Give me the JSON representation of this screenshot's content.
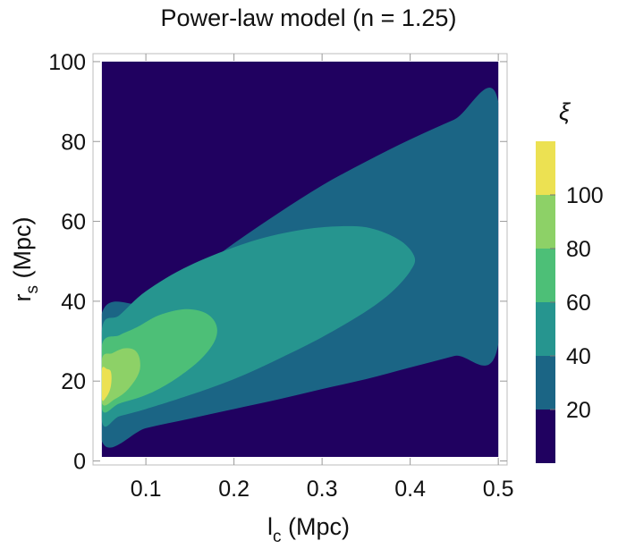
{
  "chart_data": {
    "type": "contour",
    "title": "Power-law model (n = 1.25)",
    "xlabel": {
      "main": "l",
      "sub": "c",
      "unit": " (Mpc)"
    },
    "ylabel": {
      "main": "r",
      "sub": "s",
      "unit": " (Mpc)"
    },
    "xlim": [
      0.04,
      0.51
    ],
    "ylim": [
      -1,
      102
    ],
    "data_xrange": [
      0.05,
      0.5
    ],
    "data_yrange": [
      1,
      100
    ],
    "xticks": [
      {
        "value": 0.1,
        "label": "0.1"
      },
      {
        "value": 0.2,
        "label": "0.2"
      },
      {
        "value": 0.3,
        "label": "0.3"
      },
      {
        "value": 0.4,
        "label": "0.4"
      },
      {
        "value": 0.5,
        "label": "0.5"
      }
    ],
    "yticks": [
      {
        "value": 0,
        "label": "0"
      },
      {
        "value": 20,
        "label": "20"
      },
      {
        "value": 40,
        "label": "40"
      },
      {
        "value": 60,
        "label": "60"
      },
      {
        "value": 80,
        "label": "80"
      },
      {
        "value": 100,
        "label": "100"
      }
    ],
    "colorbar": {
      "title": "ξ",
      "range": [
        0,
        120
      ],
      "levels": [
        {
          "min": 0,
          "max": 20,
          "color": "#200160"
        },
        {
          "min": 20,
          "max": 40,
          "color": "#1b6585"
        },
        {
          "min": 40,
          "max": 60,
          "color": "#26958f"
        },
        {
          "min": 60,
          "max": 80,
          "color": "#4dbf77"
        },
        {
          "min": 80,
          "max": 100,
          "color": "#8dd167"
        },
        {
          "min": 100,
          "max": 120,
          "color": "#ece152"
        }
      ],
      "ticks": [
        {
          "value": 20,
          "label": "20"
        },
        {
          "value": 40,
          "label": "40"
        },
        {
          "value": 60,
          "label": "60"
        },
        {
          "value": 80,
          "label": "80"
        },
        {
          "value": 100,
          "label": "100"
        }
      ]
    },
    "regions": [
      {
        "level": "20-40",
        "color": "#1b6585",
        "points": [
          [
            0.05,
            5
          ],
          [
            0.1,
            8.2
          ],
          [
            0.15,
            10.6
          ],
          [
            0.2,
            13
          ],
          [
            0.25,
            15.4
          ],
          [
            0.3,
            18
          ],
          [
            0.35,
            20.5
          ],
          [
            0.4,
            23.4
          ],
          [
            0.45,
            26.3
          ],
          [
            0.5,
            29.2
          ],
          [
            0.5,
            90
          ],
          [
            0.45,
            85.5
          ],
          [
            0.4,
            80.5
          ],
          [
            0.35,
            75
          ],
          [
            0.3,
            69
          ],
          [
            0.25,
            62
          ],
          [
            0.2,
            54.5
          ],
          [
            0.15,
            46.5
          ],
          [
            0.1,
            39.5
          ],
          [
            0.05,
            37
          ]
        ]
      },
      {
        "level": "40-60",
        "color": "#26958f",
        "points": [
          [
            0.05,
            10
          ],
          [
            0.07,
            11.2
          ],
          [
            0.1,
            13
          ],
          [
            0.15,
            16.5
          ],
          [
            0.2,
            20.5
          ],
          [
            0.25,
            25.5
          ],
          [
            0.3,
            31
          ],
          [
            0.35,
            37.5
          ],
          [
            0.38,
            42.5
          ],
          [
            0.4,
            47.5
          ],
          [
            0.405,
            51
          ],
          [
            0.39,
            55
          ],
          [
            0.36,
            58
          ],
          [
            0.33,
            58.8
          ],
          [
            0.28,
            58
          ],
          [
            0.22,
            55
          ],
          [
            0.15,
            49
          ],
          [
            0.1,
            42.5
          ],
          [
            0.07,
            36.5
          ],
          [
            0.05,
            33
          ]
        ]
      },
      {
        "level": "60-80",
        "color": "#4dbf77",
        "points": [
          [
            0.05,
            13
          ],
          [
            0.07,
            14.4
          ],
          [
            0.1,
            16.5
          ],
          [
            0.13,
            20
          ],
          [
            0.16,
            25
          ],
          [
            0.178,
            30
          ],
          [
            0.18,
            34
          ],
          [
            0.168,
            37
          ],
          [
            0.145,
            38
          ],
          [
            0.115,
            36.5
          ],
          [
            0.09,
            33.5
          ],
          [
            0.07,
            31.5
          ],
          [
            0.05,
            29
          ]
        ]
      },
      {
        "level": "80-100",
        "color": "#8dd167",
        "points": [
          [
            0.05,
            14.5
          ],
          [
            0.065,
            15.5
          ],
          [
            0.08,
            18
          ],
          [
            0.092,
            22
          ],
          [
            0.093,
            25.5
          ],
          [
            0.087,
            27.8
          ],
          [
            0.075,
            28.2
          ],
          [
            0.062,
            27
          ],
          [
            0.05,
            25.5
          ]
        ]
      },
      {
        "level": "100-120",
        "color": "#ece152",
        "points": [
          [
            0.05,
            15.5
          ],
          [
            0.055,
            16
          ],
          [
            0.0595,
            18
          ],
          [
            0.061,
            20.5
          ],
          [
            0.06,
            22.5
          ],
          [
            0.056,
            23
          ],
          [
            0.05,
            23
          ]
        ]
      }
    ]
  }
}
